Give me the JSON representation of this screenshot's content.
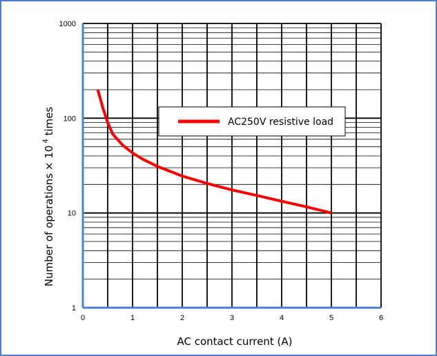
{
  "chart_data": {
    "type": "line",
    "x_label": "AC contact current (A)",
    "y_label_prefix": "Number of operations",
    "y_label_times_symbol": "×",
    "y_label_base": " 10",
    "y_label_exponent": "4",
    "y_label_suffix": " times",
    "x_range": [
      0,
      6
    ],
    "y_range": [
      1,
      1000
    ],
    "y_scale": "log",
    "grid": true,
    "x_ticks": [
      {
        "value": 0,
        "label": "0"
      },
      {
        "value": 1,
        "label": "1"
      },
      {
        "value": 2,
        "label": "2"
      },
      {
        "value": 3,
        "label": "3"
      },
      {
        "value": 4,
        "label": "4"
      },
      {
        "value": 5,
        "label": "5"
      },
      {
        "value": 6,
        "label": "6"
      }
    ],
    "y_ticks": [
      {
        "value": 1,
        "label": "1"
      },
      {
        "value": 10,
        "label": "10"
      },
      {
        "value": 100,
        "label": "100"
      },
      {
        "value": 1000,
        "label": "1000"
      }
    ],
    "legend_position": "upper-right",
    "series": [
      {
        "name": "AC250V resistive load",
        "color": "#ff0000",
        "x": [
          0.3,
          0.4,
          0.5,
          0.6,
          0.8,
          1.0,
          1.2,
          1.5,
          2.0,
          2.5,
          3.0,
          3.5,
          4.0,
          4.5,
          5.0
        ],
        "y": [
          200,
          130,
          90,
          68,
          52,
          43,
          37,
          31,
          24.5,
          20.5,
          17.5,
          15.3,
          13.3,
          11.6,
          10
        ]
      }
    ]
  },
  "colors": {
    "frame_border": "#4a7fd4",
    "axis_line": "#4a7fd4",
    "grid_major": "#000000",
    "grid_minor": "#000000"
  }
}
